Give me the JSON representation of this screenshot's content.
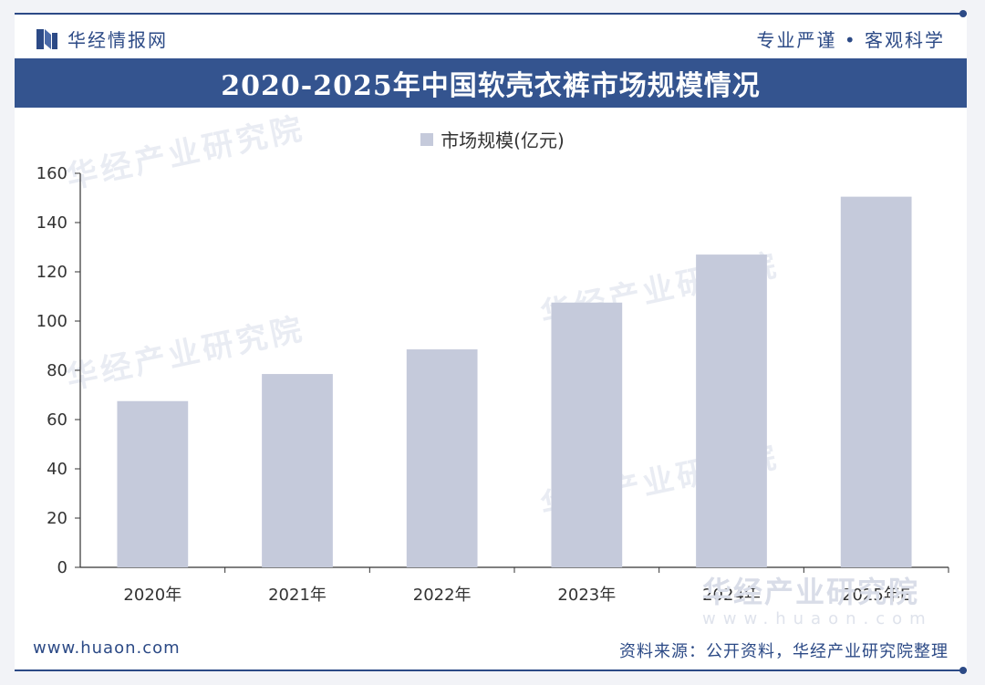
{
  "header": {
    "brand": "华经情报网",
    "slogan": "专业严谨 • 客观科学"
  },
  "footer": {
    "website": "www.huaon.com",
    "source": "资料来源：公开资料，华经产业研究院整理"
  },
  "watermark": {
    "text": "华经产业研究院",
    "url": "www.huaon.com"
  },
  "colors": {
    "brand": "#2c4a86",
    "title_bar": "#34548f",
    "bar": "#c5cadb"
  },
  "chart_data": {
    "type": "bar",
    "title": "2020-2025年中国软壳衣裤市场规模情况",
    "categories": [
      "2020年",
      "2021年",
      "2022年",
      "2023年",
      "2024年",
      "2025年E"
    ],
    "series": [
      {
        "name": "市场规模(亿元)",
        "values": [
          67.5,
          78.5,
          88.5,
          107.5,
          127,
          150.5
        ]
      }
    ],
    "yticks": [
      0,
      20,
      40,
      60,
      80,
      100,
      120,
      140,
      160
    ],
    "ylim": [
      0,
      160
    ],
    "legend_position": "top-center",
    "grid": false
  }
}
